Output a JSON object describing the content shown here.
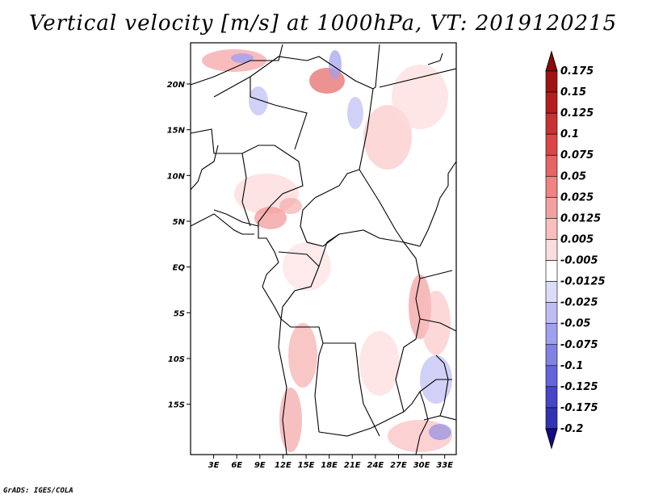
{
  "title": "Vertical velocity [m/s] at 1000hPa, VT: 2019120215",
  "footer": "GrADS: IGES/COLA",
  "map": {
    "lon_range": [
      0,
      34.5
    ],
    "lat_range": [
      -20.5,
      24.5
    ],
    "lat_ticks": [
      {
        "value": 20,
        "label": "20N"
      },
      {
        "value": 15,
        "label": "15N"
      },
      {
        "value": 10,
        "label": "10N"
      },
      {
        "value": 5,
        "label": "5N"
      },
      {
        "value": 0,
        "label": "EQ"
      },
      {
        "value": -5,
        "label": "5S"
      },
      {
        "value": -10,
        "label": "10S"
      },
      {
        "value": -15,
        "label": "15S"
      }
    ],
    "lon_ticks": [
      {
        "value": 3,
        "label": "3E"
      },
      {
        "value": 6,
        "label": "6E"
      },
      {
        "value": 9,
        "label": "9E"
      },
      {
        "value": 12,
        "label": "12E"
      },
      {
        "value": 15,
        "label": "15E"
      },
      {
        "value": 18,
        "label": "18E"
      },
      {
        "value": 21,
        "label": "21E"
      },
      {
        "value": 24,
        "label": "24E"
      },
      {
        "value": 27,
        "label": "27E"
      },
      {
        "value": 30,
        "label": "30E"
      },
      {
        "value": 33,
        "label": "33E"
      }
    ]
  },
  "colorbar": {
    "levels": [
      {
        "label": "0.175",
        "color": "#a01414"
      },
      {
        "label": "0.15",
        "color": "#b41e1e"
      },
      {
        "label": "0.125",
        "color": "#c83232"
      },
      {
        "label": "0.1",
        "color": "#dc4646"
      },
      {
        "label": "0.075",
        "color": "#e66464"
      },
      {
        "label": "0.05",
        "color": "#f08282"
      },
      {
        "label": "0.025",
        "color": "#f5a0a0"
      },
      {
        "label": "0.0125",
        "color": "#fabebe"
      },
      {
        "label": "0.005",
        "color": "#fddcdc"
      },
      {
        "label": "-0.005",
        "color": "#ffffff"
      },
      {
        "label": "-0.0125",
        "color": "#dcdcfa"
      },
      {
        "label": "-0.025",
        "color": "#bebef5"
      },
      {
        "label": "-0.05",
        "color": "#a0a0f0"
      },
      {
        "label": "-0.075",
        "color": "#8282e6"
      },
      {
        "label": "-0.1",
        "color": "#6464dc"
      },
      {
        "label": "-0.125",
        "color": "#4646c8"
      },
      {
        "label": "-0.175",
        "color": "#3232b4"
      },
      {
        "label": "-0.2",
        "color": "#1e1ea0"
      }
    ],
    "top_arrow_color": "#8c0a0a",
    "bottom_arrow_color": "#140a8c"
  }
}
